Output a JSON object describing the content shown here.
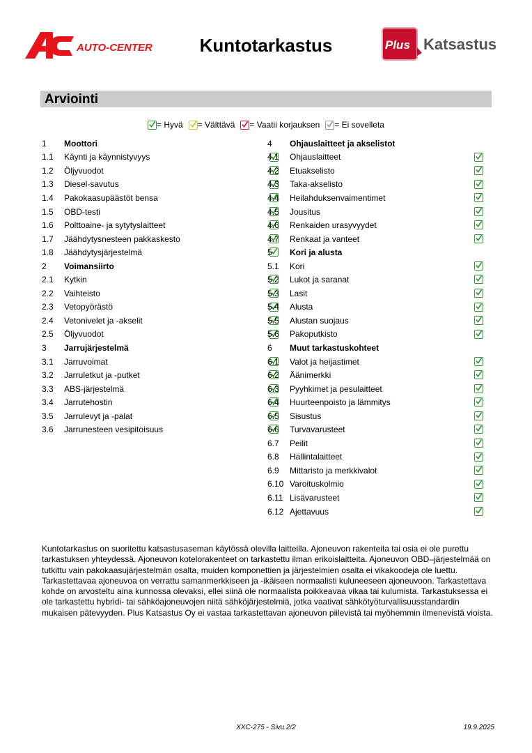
{
  "header": {
    "title": "Kuntotarkastus",
    "logo_left": "AC AUTO-CENTER",
    "logo_right": "Plus Katsastus"
  },
  "section_title": "Arviointi",
  "colors": {
    "good": "#2e9a2e",
    "fair": "#c8c82a",
    "repair": "#d4202a",
    "na": "#999999"
  },
  "legend": [
    {
      "status": "good",
      "label": "= Hyvä"
    },
    {
      "status": "fair",
      "label": "= Välttävä"
    },
    {
      "status": "repair",
      "label": "= Vaatii korjauksen"
    },
    {
      "status": "na",
      "label": "= Ei sovelleta"
    }
  ],
  "left_column": [
    {
      "num": "1",
      "label": "Moottori",
      "header": true
    },
    {
      "num": "1.1",
      "label": "Käynti ja käynnistyvyys",
      "status": "good"
    },
    {
      "num": "1.2",
      "label": "Öljyvuodot",
      "status": "good"
    },
    {
      "num": "1.3",
      "label": "Diesel-savutus",
      "status": "good"
    },
    {
      "num": "1.4",
      "label": "Pakokaasupäästöt bensa",
      "status": "good"
    },
    {
      "num": "1.5",
      "label": "OBD-testi",
      "status": "good"
    },
    {
      "num": "1.6",
      "label": "Polttoaine- ja sytytyslaitteet",
      "status": "good"
    },
    {
      "num": "1.7",
      "label": "Jäähdytysnesteen pakkaskesto",
      "status": "good"
    },
    {
      "num": "1.8",
      "label": "Jäähdytysjärjestelmä",
      "status": "good"
    },
    {
      "num": "2",
      "label": "Voimansiirto",
      "header": true
    },
    {
      "num": "2.1",
      "label": "Kytkin",
      "status": "good"
    },
    {
      "num": "2.2",
      "label": "Vaihteisto",
      "status": "good"
    },
    {
      "num": "2.3",
      "label": "Vetopyörästö",
      "status": "good"
    },
    {
      "num": "2.4",
      "label": "Vetonivelet ja -akselit",
      "status": "good"
    },
    {
      "num": "2.5",
      "label": "Öljyvuodot",
      "status": "good"
    },
    {
      "num": "3",
      "label": "Jarrujärjestelmä",
      "header": true
    },
    {
      "num": "3.1",
      "label": "Jarruvoimat",
      "status": "good"
    },
    {
      "num": "3.2",
      "label": "Jarruletkut ja -putket",
      "status": "good"
    },
    {
      "num": "3.3",
      "label": "ABS-järjestelmä",
      "status": "good"
    },
    {
      "num": "3.4",
      "label": "Jarrutehostin",
      "status": "good"
    },
    {
      "num": "3.5",
      "label": "Jarrulevyt ja -palat",
      "status": "good"
    },
    {
      "num": "3.6",
      "label": "Jarrunesteen vesipitoisuus",
      "status": "good"
    }
  ],
  "right_column": [
    {
      "num": "4",
      "label": "Ohjauslaitteet ja akselistot",
      "header": true
    },
    {
      "num": "4.1",
      "label": "Ohjauslaitteet",
      "status": "good"
    },
    {
      "num": "4.2",
      "label": "Etuakselisto",
      "status": "good"
    },
    {
      "num": "4.3",
      "label": "Taka-akselisto",
      "status": "good"
    },
    {
      "num": "4.4",
      "label": "Heilahduksenvaimentimet",
      "status": "good"
    },
    {
      "num": "4.5",
      "label": "Jousitus",
      "status": "good"
    },
    {
      "num": "4.6",
      "label": "Renkaiden urasyvyydet",
      "status": "good"
    },
    {
      "num": "4.7",
      "label": "Renkaat ja vanteet",
      "status": "good"
    },
    {
      "num": "5",
      "label": "Kori ja alusta",
      "header": true
    },
    {
      "num": "5.1",
      "label": "Kori",
      "status": "good"
    },
    {
      "num": "5.2",
      "label": "Lukot ja saranat",
      "status": "good"
    },
    {
      "num": "5.3",
      "label": "Lasit",
      "status": "good"
    },
    {
      "num": "5.4",
      "label": "Alusta",
      "status": "good"
    },
    {
      "num": "5.5",
      "label": "Alustan suojaus",
      "status": "good"
    },
    {
      "num": "5.6",
      "label": "Pakoputkisto",
      "status": "good"
    },
    {
      "num": "6",
      "label": "Muut tarkastuskohteet",
      "header": true
    },
    {
      "num": "6.1",
      "label": "Valot ja heijastimet",
      "status": "good"
    },
    {
      "num": "6.2",
      "label": "Äänimerkki",
      "status": "good"
    },
    {
      "num": "6.3",
      "label": "Pyyhkimet ja pesulaitteet",
      "status": "good"
    },
    {
      "num": "6.4",
      "label": "Huurteenpoisto ja lämmitys",
      "status": "good"
    },
    {
      "num": "6.5",
      "label": "Sisustus",
      "status": "good"
    },
    {
      "num": "6.6",
      "label": "Turvavarusteet",
      "status": "good"
    },
    {
      "num": "6.7",
      "label": "Peilit",
      "status": "good"
    },
    {
      "num": "6.8",
      "label": "Hallintalaitteet",
      "status": "good"
    },
    {
      "num": "6.9",
      "label": "Mittaristo ja merkkivalot",
      "status": "good"
    },
    {
      "num": "6.10",
      "label": "Varoituskolmio",
      "status": "good"
    },
    {
      "num": "6.11",
      "label": "Lisävarusteet",
      "status": "good"
    },
    {
      "num": "6.12",
      "label": "Ajettavuus",
      "status": "good"
    }
  ],
  "note": "Kuntotarkastus on suoritettu katsastusaseman käytössä olevilla laitteilla. Ajoneuvon rakenteita tai osia ei ole purettu tarkastuksen yhteydessä. Ajoneuvon kotelorakenteet on tarkastettu ilman erikoislaitteita. Ajoneuvon OBD–järjestelmää on tutkittu vain pakokaasujärjestelmän osalta, muiden komponettien ja järjestelmien osalta ei vikakoodeja ole luettu. Tarkastettavaa ajoneuvoa on verrattu samanmerkkiseen ja -ikäiseen normaalisti kuluneeseen ajoneuvoon. Tarkastettava kohde on arvosteltu aina kunnossa olevaksi, ellei siinä ole normaalista poikkeavaa vikaa tai kulumista. Tarkastuksessa ei ole tarkastettu hybridi- tai sähköajoneuvojen niitä sähköjärjestelmiä, jotka vaativat sähkötyöturvallisuusstandardin mukaisen pätevyyden. Plus Katsastus Oy ei vastaa tarkastettavan ajoneuvon piilevistä tai myöhemmin ilmenevistä vioista.",
  "footer": {
    "page": "XXC-275 - Sivu 2/2",
    "date": "19.9.2025"
  }
}
